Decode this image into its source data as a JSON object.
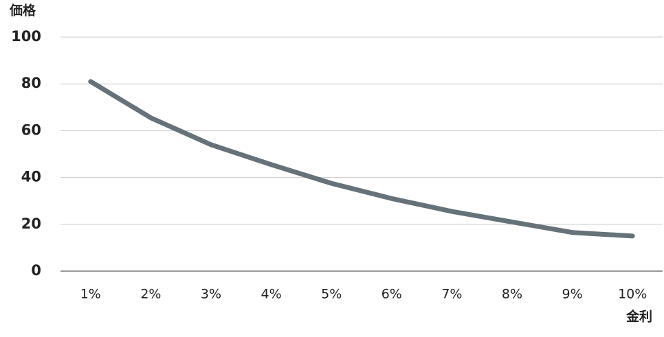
{
  "chart_data": {
    "type": "line",
    "y_label": "価格",
    "x_label": "金利",
    "categories": [
      "1%",
      "2%",
      "3%",
      "4%",
      "5%",
      "6%",
      "7%",
      "8%",
      "9%",
      "10%"
    ],
    "series": [
      {
        "name": "価格",
        "color": "#65727a",
        "values": [
          81,
          65.5,
          54,
          45.5,
          37.5,
          31,
          25.5,
          21,
          16.5,
          15
        ]
      }
    ],
    "ylim": [
      0,
      100
    ],
    "yticks": [
      0,
      20,
      40,
      60,
      80,
      100
    ],
    "grid": true
  }
}
